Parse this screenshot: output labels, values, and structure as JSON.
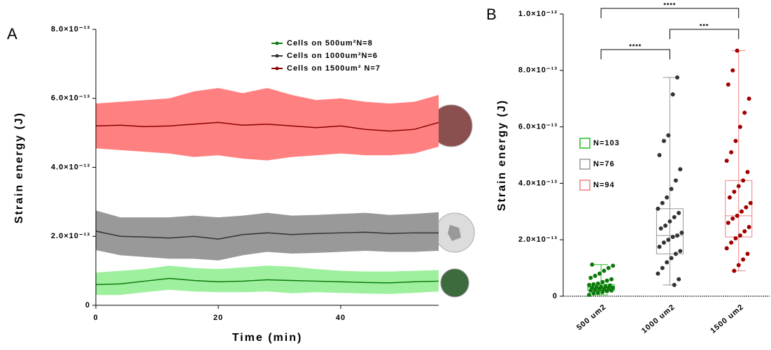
{
  "chart_data": [
    {
      "type": "band-line",
      "panel": "A",
      "x_label": "Time (min)",
      "y_label": "Strain energy (J)",
      "x": [
        0,
        4,
        8,
        12,
        16,
        20,
        24,
        28,
        32,
        36,
        40,
        44,
        48,
        52,
        56
      ],
      "xlim": [
        0,
        56
      ],
      "xticks": [
        0,
        20,
        40
      ],
      "ylim": [
        0,
        8e-13
      ],
      "yticks": [
        0,
        {
          "value": 2e-13,
          "label": "2.0×10⁻¹³"
        },
        {
          "value": 4e-13,
          "label": "4.0×10⁻¹³"
        },
        {
          "value": 6e-13,
          "label": "6.0×10⁻¹³"
        },
        {
          "value": 8e-13,
          "label": "8.0×10⁻¹³"
        }
      ],
      "legend": "top-right",
      "series": [
        {
          "name": "Cells on 500um²N=8",
          "color": "#0b7a0b",
          "band_color": "#9ef09e",
          "values": [
            6e-14,
            6.2e-14,
            7e-14,
            7.8e-14,
            7.2e-14,
            6.8e-14,
            7e-14,
            7.4e-14,
            7.2e-14,
            7e-14,
            6.8e-14,
            6.6e-14,
            6.5e-14,
            6.8e-14,
            7e-14
          ],
          "lower": [
            3e-14,
            3e-14,
            3.8e-14,
            4.5e-14,
            4e-14,
            3.8e-14,
            3.8e-14,
            4e-14,
            3.5e-14,
            3.8e-14,
            3.6e-14,
            3.4e-14,
            3.3e-14,
            3.6e-14,
            4e-14
          ],
          "upper": [
            9.5e-14,
            1e-13,
            1.05e-13,
            1.15e-13,
            1.08e-13,
            1.05e-13,
            1.1e-13,
            1.15e-13,
            1.12e-13,
            1.05e-13,
            1e-13,
            9.8e-14,
            9.8e-14,
            1e-13,
            1.02e-13
          ]
        },
        {
          "name": "Cells on 1000um²N=6",
          "color": "#333333",
          "band_color": "#999999",
          "values": [
            2.15e-13,
            2e-13,
            1.98e-13,
            1.95e-13,
            2e-13,
            1.92e-13,
            2.05e-13,
            2.1e-13,
            2.05e-13,
            2.08e-13,
            2.1e-13,
            2.12e-13,
            2.08e-13,
            2.1e-13,
            2.1e-13
          ],
          "lower": [
            1.6e-13,
            1.45e-13,
            1.4e-13,
            1.35e-13,
            1.35e-13,
            1.3e-13,
            1.45e-13,
            1.55e-13,
            1.5e-13,
            1.52e-13,
            1.55e-13,
            1.58e-13,
            1.55e-13,
            1.55e-13,
            1.58e-13
          ],
          "upper": [
            2.75e-13,
            2.55e-13,
            2.55e-13,
            2.55e-13,
            2.6e-13,
            2.55e-13,
            2.6e-13,
            2.68e-13,
            2.6e-13,
            2.62e-13,
            2.65e-13,
            2.68e-13,
            2.62e-13,
            2.65e-13,
            2.7e-13
          ]
        },
        {
          "name": "Cells on 1500um² N=7",
          "color": "#8b0000",
          "band_color": "#ff8080",
          "values": [
            5.2e-13,
            5.22e-13,
            5.18e-13,
            5.2e-13,
            5.25e-13,
            5.3e-13,
            5.22e-13,
            5.25e-13,
            5.2e-13,
            5.15e-13,
            5.2e-13,
            5.1e-13,
            5.05e-13,
            5.1e-13,
            5.3e-13
          ],
          "lower": [
            4.55e-13,
            4.5e-13,
            4.45e-13,
            4.4e-13,
            4.3e-13,
            4.35e-13,
            4.25e-13,
            4.2e-13,
            4.3e-13,
            4.35e-13,
            4.4e-13,
            4.35e-13,
            4.35e-13,
            4.4e-13,
            4.6e-13
          ],
          "upper": [
            5.85e-13,
            5.9e-13,
            5.95e-13,
            6e-13,
            6.2e-13,
            6.3e-13,
            6.15e-13,
            6.3e-13,
            6.1e-13,
            5.95e-13,
            6e-13,
            5.9e-13,
            5.85e-13,
            5.9e-13,
            6.1e-13
          ]
        }
      ]
    },
    {
      "type": "box",
      "panel": "B",
      "y_label": "Strain energy (J)",
      "categories": [
        "500 um2",
        "1000 um2",
        "1500 um2"
      ],
      "ylim": [
        0,
        1e-12
      ],
      "yticks": [
        0,
        {
          "value": 2e-13,
          "label": "2.0×10⁻¹³"
        },
        {
          "value": 4e-13,
          "label": "4.0×10⁻¹³"
        },
        {
          "value": 6e-13,
          "label": "6.0×10⁻¹³"
        },
        {
          "value": 8e-13,
          "label": "8.0×10⁻¹³"
        },
        {
          "value": 1e-12,
          "label": "1.0×10⁻¹²"
        }
      ],
      "legend": "left",
      "annotations": [
        "****",
        "***",
        "****"
      ],
      "series": [
        {
          "name": "N=103",
          "color": "#0b7a0b",
          "box_color": "#22bb22",
          "min": 5e-15,
          "q1": 2e-14,
          "median": 3e-14,
          "q3": 4.2e-14,
          "max": 1.12e-13,
          "points": [
            5e-15,
            1e-14,
            1.2e-14,
            1.5e-14,
            1.8e-14,
            2e-14,
            2e-14,
            2.2e-14,
            2.5e-14,
            2.5e-14,
            2.8e-14,
            3e-14,
            3e-14,
            3.2e-14,
            3.3e-14,
            3.5e-14,
            3.8e-14,
            4e-14,
            4.2e-14,
            4.5e-14,
            5e-14,
            5.5e-14,
            6e-14,
            6.5e-14,
            7.2e-14,
            8e-14,
            9e-14,
            1e-13,
            1.08e-13,
            1.12e-13
          ]
        },
        {
          "name": "N=76",
          "color": "#333333",
          "box_color": "#999999",
          "min": 4e-14,
          "q1": 1.5e-13,
          "median": 2.15e-13,
          "q3": 3.1e-13,
          "max": 7.75e-13,
          "points": [
            4e-14,
            6e-14,
            8e-14,
            1e-13,
            1.2e-13,
            1.35e-13,
            1.5e-13,
            1.6e-13,
            1.75e-13,
            1.9e-13,
            2e-13,
            2.1e-13,
            2.15e-13,
            2.25e-13,
            2.4e-13,
            2.5e-13,
            2.65e-13,
            2.8e-13,
            2.95e-13,
            3.1e-13,
            3.3e-13,
            3.5e-13,
            3.8e-13,
            4.1e-13,
            4.5e-13,
            5e-13,
            5.5e-13,
            5.7e-13,
            7.15e-13,
            7.75e-13
          ]
        },
        {
          "name": "N=94",
          "color": "#a00000",
          "box_color": "#f08080",
          "min": 9e-14,
          "q1": 2.1e-13,
          "median": 2.85e-13,
          "q3": 4.1e-13,
          "max": 8.7e-13,
          "points": [
            9e-14,
            1.1e-13,
            1.3e-13,
            1.5e-13,
            1.7e-13,
            1.9e-13,
            2.05e-13,
            2.15e-13,
            2.3e-13,
            2.45e-13,
            2.6e-13,
            2.75e-13,
            2.85e-13,
            3e-13,
            3.15e-13,
            3.3e-13,
            3.5e-13,
            3.7e-13,
            3.9e-13,
            4.1e-13,
            4.4e-13,
            4.8e-13,
            5.1e-13,
            5.5e-13,
            6e-13,
            6.5e-13,
            7e-13,
            7.5e-13,
            8e-13,
            8.7e-13
          ]
        }
      ]
    }
  ]
}
